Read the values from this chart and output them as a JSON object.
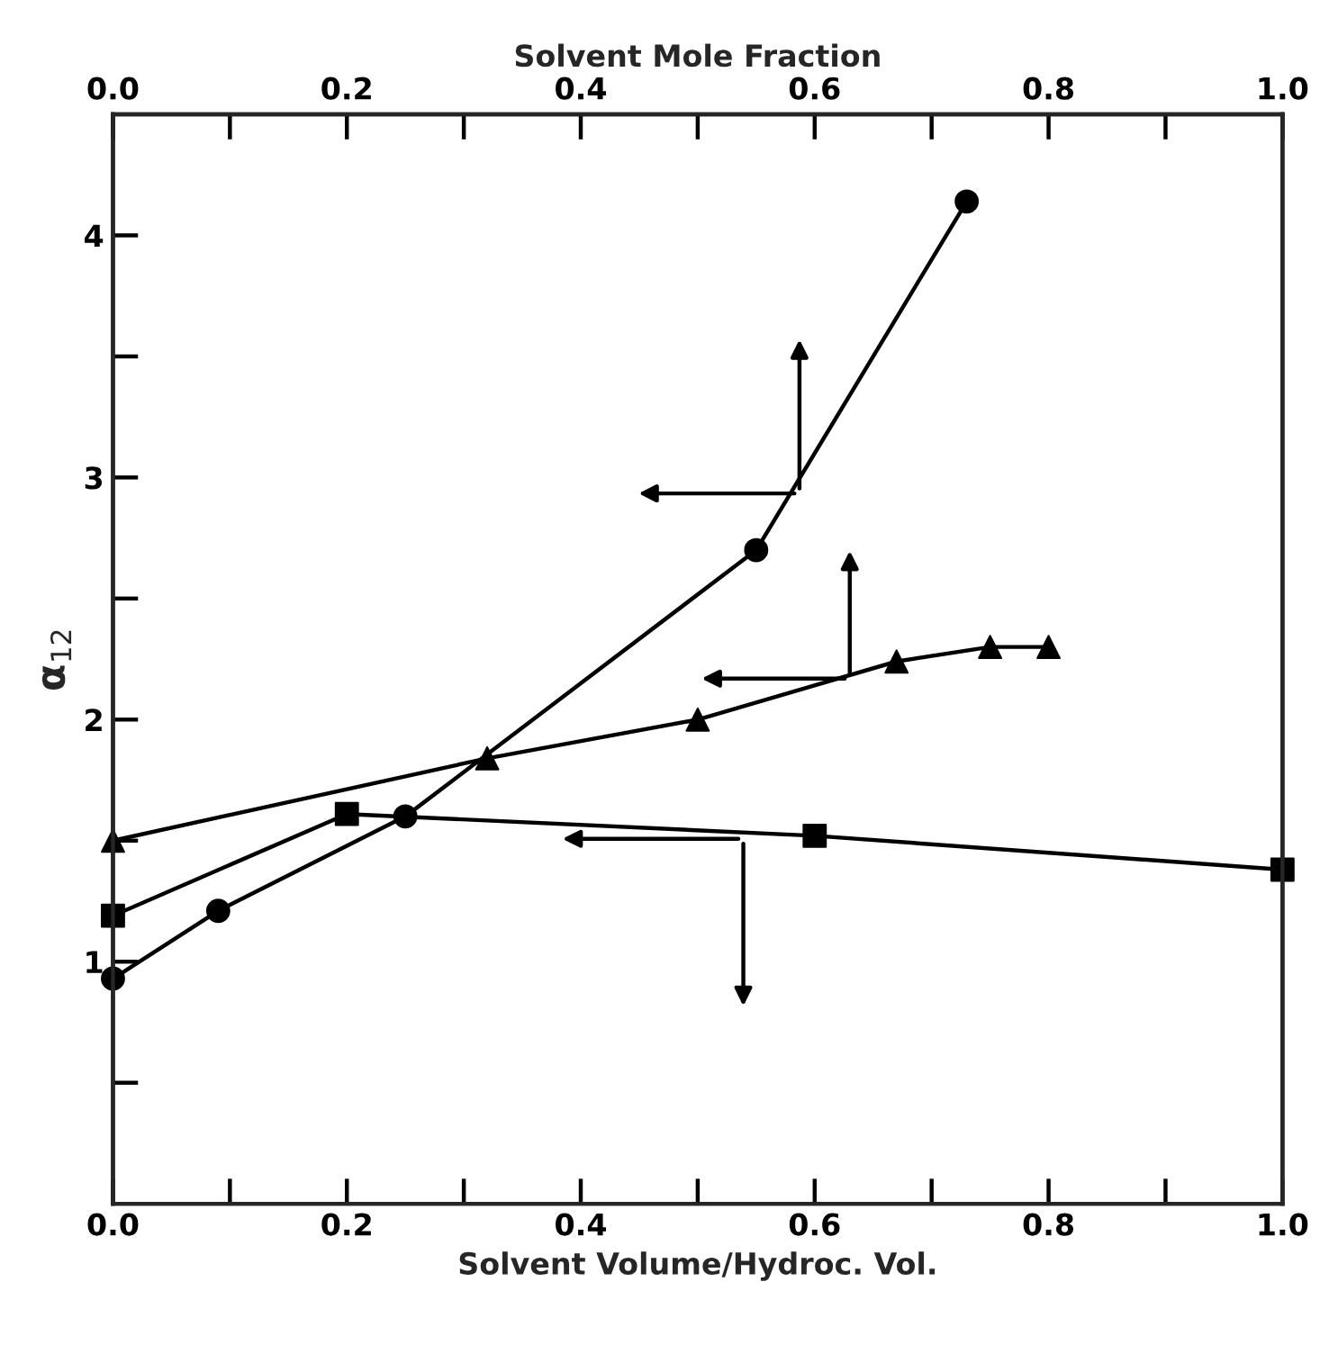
{
  "chart_data": {
    "type": "line",
    "xlabel": "Solvent Volume/Hydroc. Vol.",
    "x2label": "Solvent Mole Fraction",
    "ylabel": "α$_{12}$",
    "xlim": [
      0,
      1
    ],
    "x2lim": [
      0,
      1
    ],
    "ylim": [
      0,
      4.5
    ],
    "xticks": [
      {
        "value": 0,
        "label": "0.0"
      },
      {
        "value": 0.1,
        "label": null
      },
      0.2,
      {
        "value": 0.3,
        "label": null
      },
      0.4,
      {
        "value": 0.5,
        "label": null
      },
      0.6,
      {
        "value": 0.7,
        "label": null
      },
      0.8,
      {
        "value": 0.9,
        "label": null
      },
      {
        "value": 1,
        "label": "1.0"
      }
    ],
    "x2ticks": [
      {
        "value": 0,
        "label": "0.0"
      },
      {
        "value": 0.1,
        "label": null
      },
      0.2,
      {
        "value": 0.3,
        "label": null
      },
      0.4,
      {
        "value": 0.5,
        "label": null
      },
      0.6,
      {
        "value": 0.7,
        "label": null
      },
      0.8,
      {
        "value": 0.9,
        "label": null
      },
      {
        "value": 1,
        "label": "1.0"
      }
    ],
    "yticks": [
      {
        "value": 0.5,
        "label": null
      },
      1,
      {
        "value": 1.5,
        "label": null
      },
      2,
      {
        "value": 2.5,
        "label": null
      },
      3,
      {
        "value": 3.5,
        "label": null
      },
      4
    ],
    "grid": false,
    "legend": false,
    "line_style": "solid",
    "series": [
      {
        "color": "#000000",
        "marker": "circle",
        "x": [
          0.0,
          0.09,
          0.25,
          0.55,
          0.73
        ],
        "values": [
          0.93,
          1.21,
          1.6,
          2.7,
          4.14
        ]
      },
      {
        "color": "#000000",
        "marker": "triangle",
        "x": [
          0.0,
          0.32,
          0.5,
          0.67,
          0.75,
          0.8
        ],
        "values": [
          1.5,
          1.84,
          2.0,
          2.24,
          2.3,
          2.3
        ]
      },
      {
        "color": "#000000",
        "marker": "square",
        "x": [
          0.0,
          0.2,
          0.6,
          1.0
        ],
        "values": [
          1.19,
          1.61,
          1.52,
          1.38
        ]
      }
    ]
  }
}
